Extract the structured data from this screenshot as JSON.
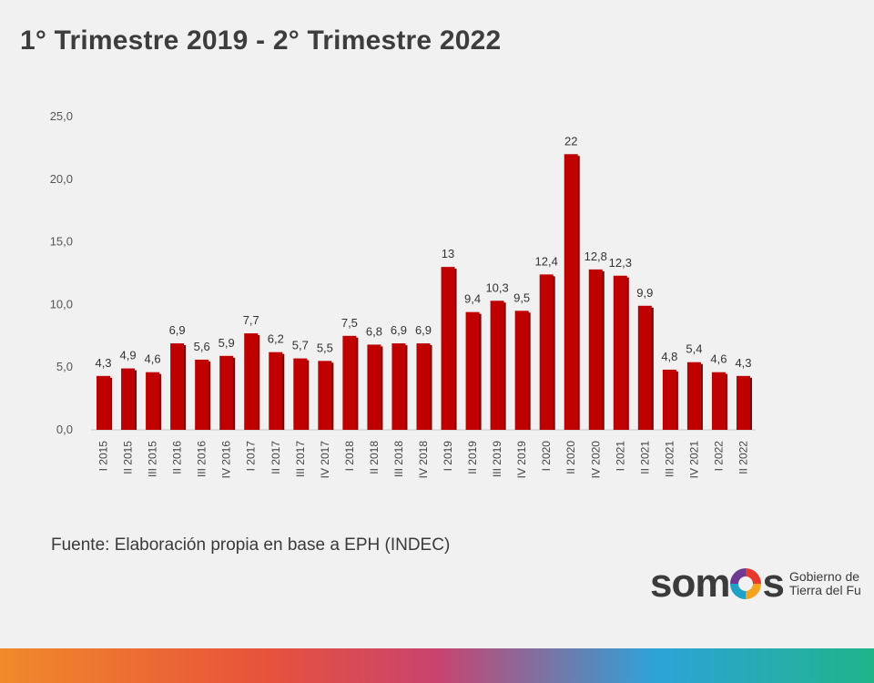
{
  "header": {
    "title": "1° Trimestre 2019 - 2° Trimestre 2022"
  },
  "footer": {
    "source": "Fuente: Elaboración propia en base a EPH (INDEC)",
    "logo_part1": "som",
    "logo_part2": "s",
    "logo_sub_line1": "Gobierno de",
    "logo_sub_line2": "Tierra del Fu"
  },
  "colors": {
    "bar": "#c00000",
    "bar_shadow": "#7a0000",
    "background": "#f1f1f1"
  },
  "chart_data": {
    "type": "bar",
    "categories": [
      "I 2015",
      "II 2015",
      "III 2015",
      "II 2016",
      "III 2016",
      "IV 2016",
      "I 2017",
      "II 2017",
      "III 2017",
      "IV 2017",
      "I 2018",
      "II 2018",
      "III 2018",
      "IV 2018",
      "I 2019",
      "II 2019",
      "III 2019",
      "IV 2019",
      "I 2020",
      "II 2020",
      "IV 2020",
      "I 2021",
      "II 2021",
      "III 2021",
      "IV 2021",
      "I 2022",
      "II 2022"
    ],
    "values": [
      4.3,
      4.9,
      4.6,
      6.9,
      5.6,
      5.9,
      7.7,
      6.2,
      5.7,
      5.5,
      7.5,
      6.8,
      6.9,
      6.9,
      13,
      9.4,
      10.3,
      9.5,
      12.4,
      22,
      12.8,
      12.3,
      9.9,
      4.8,
      5.4,
      4.6,
      4.3
    ],
    "value_labels": [
      "4,3",
      "4,9",
      "4,6",
      "6,9",
      "5,6",
      "5,9",
      "7,7",
      "6,2",
      "5,7",
      "5,5",
      "7,5",
      "6,8",
      "6,9",
      "6,9",
      "13",
      "9,4",
      "10,3",
      "9,5",
      "12,4",
      "22",
      "12,8",
      "12,3",
      "9,9",
      "4,8",
      "5,4",
      "4,6",
      "4,3"
    ],
    "yticks": [
      "0,0",
      "5,0",
      "10,0",
      "15,0",
      "20,0",
      "25,0"
    ],
    "ylim": [
      0,
      25
    ],
    "grid": false,
    "legend": "none",
    "title": "1° Trimestre 2019 - 2° Trimestre 2022",
    "xlabel": "",
    "ylabel": ""
  }
}
